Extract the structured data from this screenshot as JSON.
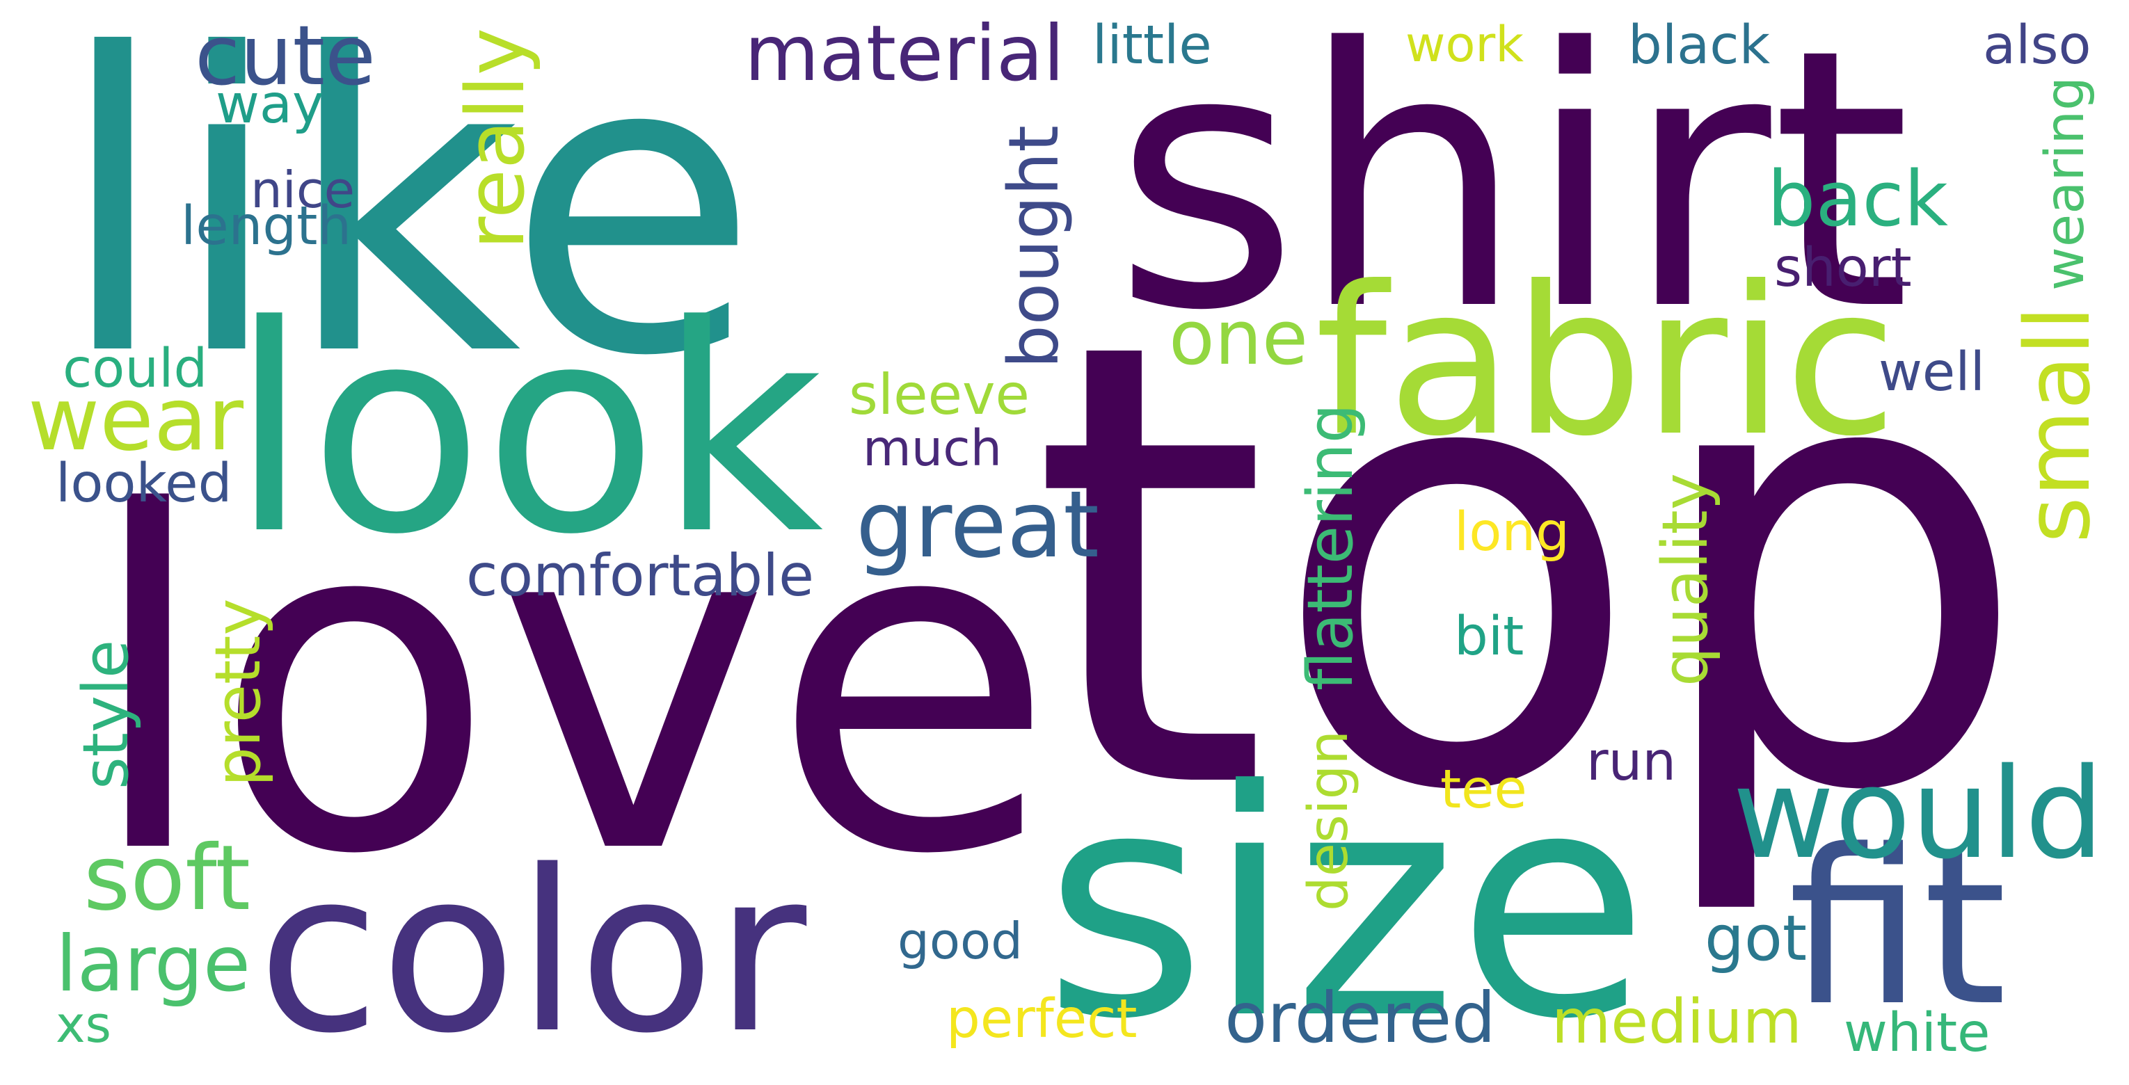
{
  "words": [
    {
      "text": "top",
      "color": "#440154",
      "vertical": false
    },
    {
      "text": "love",
      "color": "#440154",
      "vertical": false
    },
    {
      "text": "like",
      "color": "#21918c",
      "vertical": false
    },
    {
      "text": "shirt",
      "color": "#440154",
      "vertical": false
    },
    {
      "text": "size",
      "color": "#1fa187",
      "vertical": false
    },
    {
      "text": "look",
      "color": "#25a584",
      "vertical": false
    },
    {
      "text": "color",
      "color": "#46327e",
      "vertical": false
    },
    {
      "text": "fabric",
      "color": "#a5db36",
      "vertical": false
    },
    {
      "text": "fit",
      "color": "#3b528b",
      "vertical": false
    },
    {
      "text": "would",
      "color": "#21918c",
      "vertical": false
    },
    {
      "text": "small",
      "color": "#c2df23",
      "vertical": true
    },
    {
      "text": "wear",
      "color": "#b5de2b",
      "vertical": false
    },
    {
      "text": "great",
      "color": "#355f8d",
      "vertical": false
    },
    {
      "text": "material",
      "color": "#482677",
      "vertical": false
    },
    {
      "text": "ordered",
      "color": "#33638d",
      "vertical": false
    },
    {
      "text": "medium",
      "color": "#bddf26",
      "vertical": false
    },
    {
      "text": "cute",
      "color": "#3b528b",
      "vertical": false
    },
    {
      "text": "back",
      "color": "#2ab07f",
      "vertical": false
    },
    {
      "text": "bought",
      "color": "#3e4a89",
      "vertical": true
    },
    {
      "text": "really",
      "color": "#b8de29",
      "vertical": true
    },
    {
      "text": "one",
      "color": "#93d741",
      "vertical": false
    },
    {
      "text": "soft",
      "color": "#5ec962",
      "vertical": false
    },
    {
      "text": "large",
      "color": "#4ac16d",
      "vertical": false
    },
    {
      "text": "comfortable",
      "color": "#3e4a89",
      "vertical": false
    },
    {
      "text": "little",
      "color": "#2a788e",
      "vertical": false
    },
    {
      "text": "work",
      "color": "#d0e11c",
      "vertical": false
    },
    {
      "text": "black",
      "color": "#2c728e",
      "vertical": false
    },
    {
      "text": "also",
      "color": "#414487",
      "vertical": false
    },
    {
      "text": "way",
      "color": "#1f9e89",
      "vertical": false
    },
    {
      "text": "nice",
      "color": "#404688",
      "vertical": false
    },
    {
      "text": "length",
      "color": "#2c728e",
      "vertical": false
    },
    {
      "text": "wearing",
      "color": "#4ac16d",
      "vertical": true
    },
    {
      "text": "short",
      "color": "#481f70",
      "vertical": false
    },
    {
      "text": "could",
      "color": "#29af7f",
      "vertical": false
    },
    {
      "text": "well",
      "color": "#3e4a89",
      "vertical": false
    },
    {
      "text": "sleeve",
      "color": "#a0da39",
      "vertical": false
    },
    {
      "text": "much",
      "color": "#482878",
      "vertical": false
    },
    {
      "text": "looked",
      "color": "#3b528b",
      "vertical": false
    },
    {
      "text": "flattering",
      "color": "#3cbb75",
      "vertical": true
    },
    {
      "text": "quality",
      "color": "#a8db34",
      "vertical": true
    },
    {
      "text": "long",
      "color": "#fde725",
      "vertical": false
    },
    {
      "text": "bit",
      "color": "#20a386",
      "vertical": false
    },
    {
      "text": "pretty",
      "color": "#b5de2b",
      "vertical": true
    },
    {
      "text": "style",
      "color": "#2db27d",
      "vertical": true
    },
    {
      "text": "design",
      "color": "#addc30",
      "vertical": true
    },
    {
      "text": "run",
      "color": "#482475",
      "vertical": false
    },
    {
      "text": "tee",
      "color": "#f1e51d",
      "vertical": false
    },
    {
      "text": "good",
      "color": "#31688e",
      "vertical": false
    },
    {
      "text": "got",
      "color": "#2a788e",
      "vertical": false
    },
    {
      "text": "perfect",
      "color": "#f4e61e",
      "vertical": false
    },
    {
      "text": "white",
      "color": "#35b779",
      "vertical": false
    },
    {
      "text": "xs",
      "color": "#3dbc74",
      "vertical": false
    }
  ]
}
